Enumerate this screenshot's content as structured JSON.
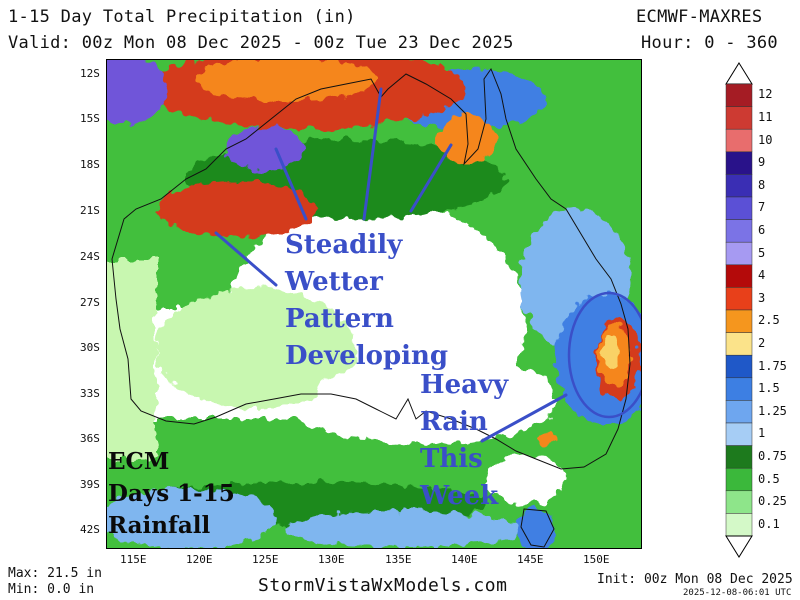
{
  "header": {
    "title": "1-15 Day Total Precipitation (in)",
    "model": "ECMWF-MAXRES",
    "valid": "Valid: 00z Mon 08 Dec 2025 - 00z Tue 23 Dec 2025",
    "hour": "Hour: 0 - 360"
  },
  "map": {
    "lat_ticks": [
      "12S",
      "15S",
      "18S",
      "21S",
      "24S",
      "27S",
      "30S",
      "33S",
      "36S",
      "39S",
      "42S"
    ],
    "lon_ticks": [
      "115E",
      "120E",
      "125E",
      "130E",
      "135E",
      "140E",
      "145E",
      "150E"
    ],
    "colors": {
      "ocean_dry": "#ffffff",
      "light": "#c8f7b0",
      "green_mid": "#42bf3c",
      "green_dark": "#1e8a1e",
      "blue_light": "#7fb6ef",
      "blue": "#3f7fe3",
      "purple": "#6f55d9",
      "red": "#d43a1e",
      "orange": "#f5861e",
      "yellow": "#f9d266"
    }
  },
  "annotations": {
    "main_lines": [
      "Steadily",
      "Wetter",
      "Pattern",
      "Developing"
    ],
    "heavy_lines": [
      "Heavy",
      "Rain",
      "This",
      "Week"
    ],
    "ecm_lines": [
      "ECM",
      "Days 1-15",
      "Rainfall"
    ],
    "annotation_color": "#3a4fc8"
  },
  "colorbar": {
    "labels": [
      "12",
      "11",
      "10",
      "9",
      "8",
      "7",
      "6",
      "5",
      "4",
      "3",
      "2.5",
      "2",
      "1.75",
      "1.5",
      "1.25",
      "1",
      "0.75",
      "0.5",
      "0.25",
      "0.1"
    ],
    "colors": [
      "#a51c24",
      "#cd3a32",
      "#e86d6d",
      "#29128a",
      "#3a2eb4",
      "#5b50d6",
      "#7b73e6",
      "#a69af2",
      "#b40a0a",
      "#e8401a",
      "#f5961e",
      "#fbe38a",
      "#1f58c8",
      "#3d7fe3",
      "#6ea6ef",
      "#a6cdf5",
      "#1d7a1d",
      "#3bb83b",
      "#8ee58a",
      "#d4f9c8"
    ]
  },
  "footer": {
    "max": "Max: 21.5 in",
    "min": "Min: 0.0 in",
    "site": "StormVistaWxModels.com",
    "init": "Init: 00z Mon 08 Dec 2025",
    "stamp": "2025-12-08-06:01 UTC"
  }
}
